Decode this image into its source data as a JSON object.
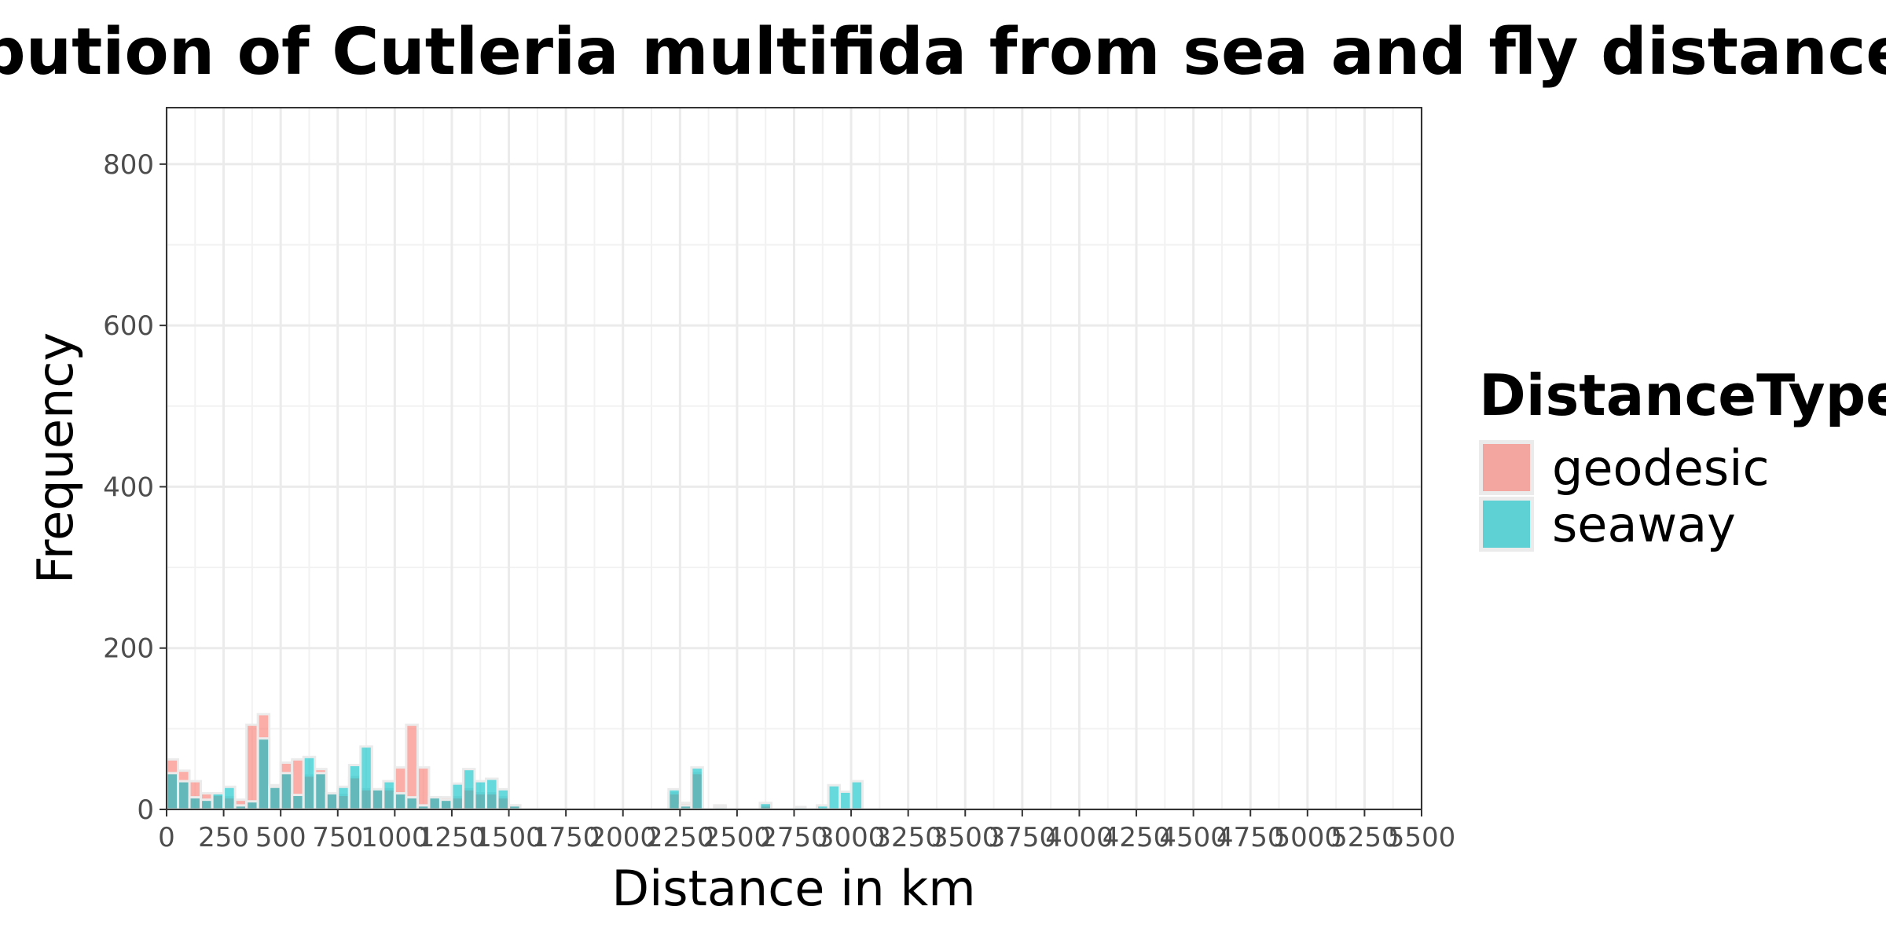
{
  "chart_data": {
    "type": "bar",
    "title": "Distribution of Cutleria multifida from sea and fly distances",
    "xlabel": "Distance in km",
    "ylabel": "Frequency",
    "xlim": [
      0,
      5500
    ],
    "ylim": [
      0,
      800
    ],
    "x_ticks": [
      0,
      250,
      500,
      750,
      1000,
      1250,
      1500,
      1750,
      2000,
      2250,
      2500,
      2750,
      3000,
      3250,
      3500,
      3750,
      4000,
      4250,
      4500,
      4750,
      5000,
      5250,
      5500
    ],
    "y_ticks": [
      0,
      200,
      400,
      600,
      800
    ],
    "bin_width": 50,
    "grid": true,
    "legend": {
      "title": "DistanceType",
      "position": "right",
      "entries": [
        {
          "name": "geodesic",
          "color": "#F8766D"
        },
        {
          "name": "seaway",
          "color": "#00BFC4"
        }
      ]
    },
    "series": [
      {
        "name": "geodesic",
        "color": "#F8766D",
        "x": [
          25,
          75,
          125,
          175,
          225,
          275,
          325,
          375,
          425,
          475,
          525,
          575,
          625,
          675,
          725,
          775,
          825,
          875,
          925,
          975,
          1025,
          1075,
          1125,
          1175,
          1225,
          1275,
          1325,
          1375,
          1425,
          1475,
          1525,
          2225,
          2275,
          2325,
          2425,
          2625
        ],
        "values": [
          62,
          48,
          35,
          20,
          18,
          15,
          12,
          105,
          118,
          30,
          58,
          62,
          42,
          50,
          20,
          18,
          40,
          25,
          25,
          25,
          52,
          105,
          52,
          15,
          15,
          15,
          25,
          20,
          20,
          15,
          5,
          20,
          8,
          45,
          5,
          5
        ]
      },
      {
        "name": "seaway",
        "color": "#00BFC4",
        "x": [
          25,
          75,
          125,
          175,
          225,
          275,
          325,
          375,
          425,
          475,
          525,
          575,
          625,
          675,
          725,
          775,
          825,
          875,
          925,
          975,
          1025,
          1075,
          1125,
          1175,
          1225,
          1275,
          1325,
          1375,
          1425,
          1475,
          1525,
          2225,
          2275,
          2325,
          2425,
          2625,
          2775,
          2875,
          2925,
          2975,
          3025
        ],
        "values": [
          45,
          35,
          15,
          12,
          20,
          28,
          5,
          10,
          88,
          28,
          45,
          18,
          65,
          45,
          20,
          28,
          55,
          78,
          25,
          35,
          20,
          15,
          5,
          15,
          12,
          32,
          50,
          35,
          38,
          25,
          5,
          25,
          5,
          52,
          3,
          8,
          3,
          5,
          30,
          22,
          35
        ]
      }
    ]
  }
}
